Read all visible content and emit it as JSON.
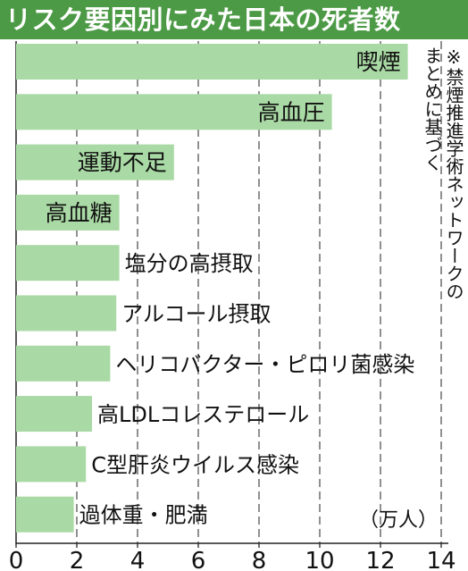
{
  "title": "リスク要因別にみた日本の死者数",
  "note": "※禁煙推進学術ネットワークの\nまとめに基づく",
  "colors": {
    "title_band": "#4c9a45",
    "bar": "#a9d9a4",
    "grid": "#555555"
  },
  "chart_data": {
    "type": "bar",
    "orientation": "horizontal",
    "title": "リスク要因別にみた日本の死者数",
    "unit": "（万人）",
    "categories": [
      "喫煙",
      "高血圧",
      "運動不足",
      "高血糖",
      "塩分の高摂取",
      "アルコール摂取",
      "ヘリコバクター・ピロリ菌感染",
      "高LDLコレステロール",
      "C型肝炎ウイルス感染",
      "過体重・肥満"
    ],
    "values": [
      12.9,
      10.4,
      5.2,
      3.4,
      3.4,
      3.3,
      3.1,
      2.5,
      2.3,
      1.9
    ],
    "ticks": [
      0,
      2,
      4,
      6,
      8,
      10,
      12,
      14
    ],
    "xlim": [
      0,
      14
    ],
    "grid": true
  }
}
